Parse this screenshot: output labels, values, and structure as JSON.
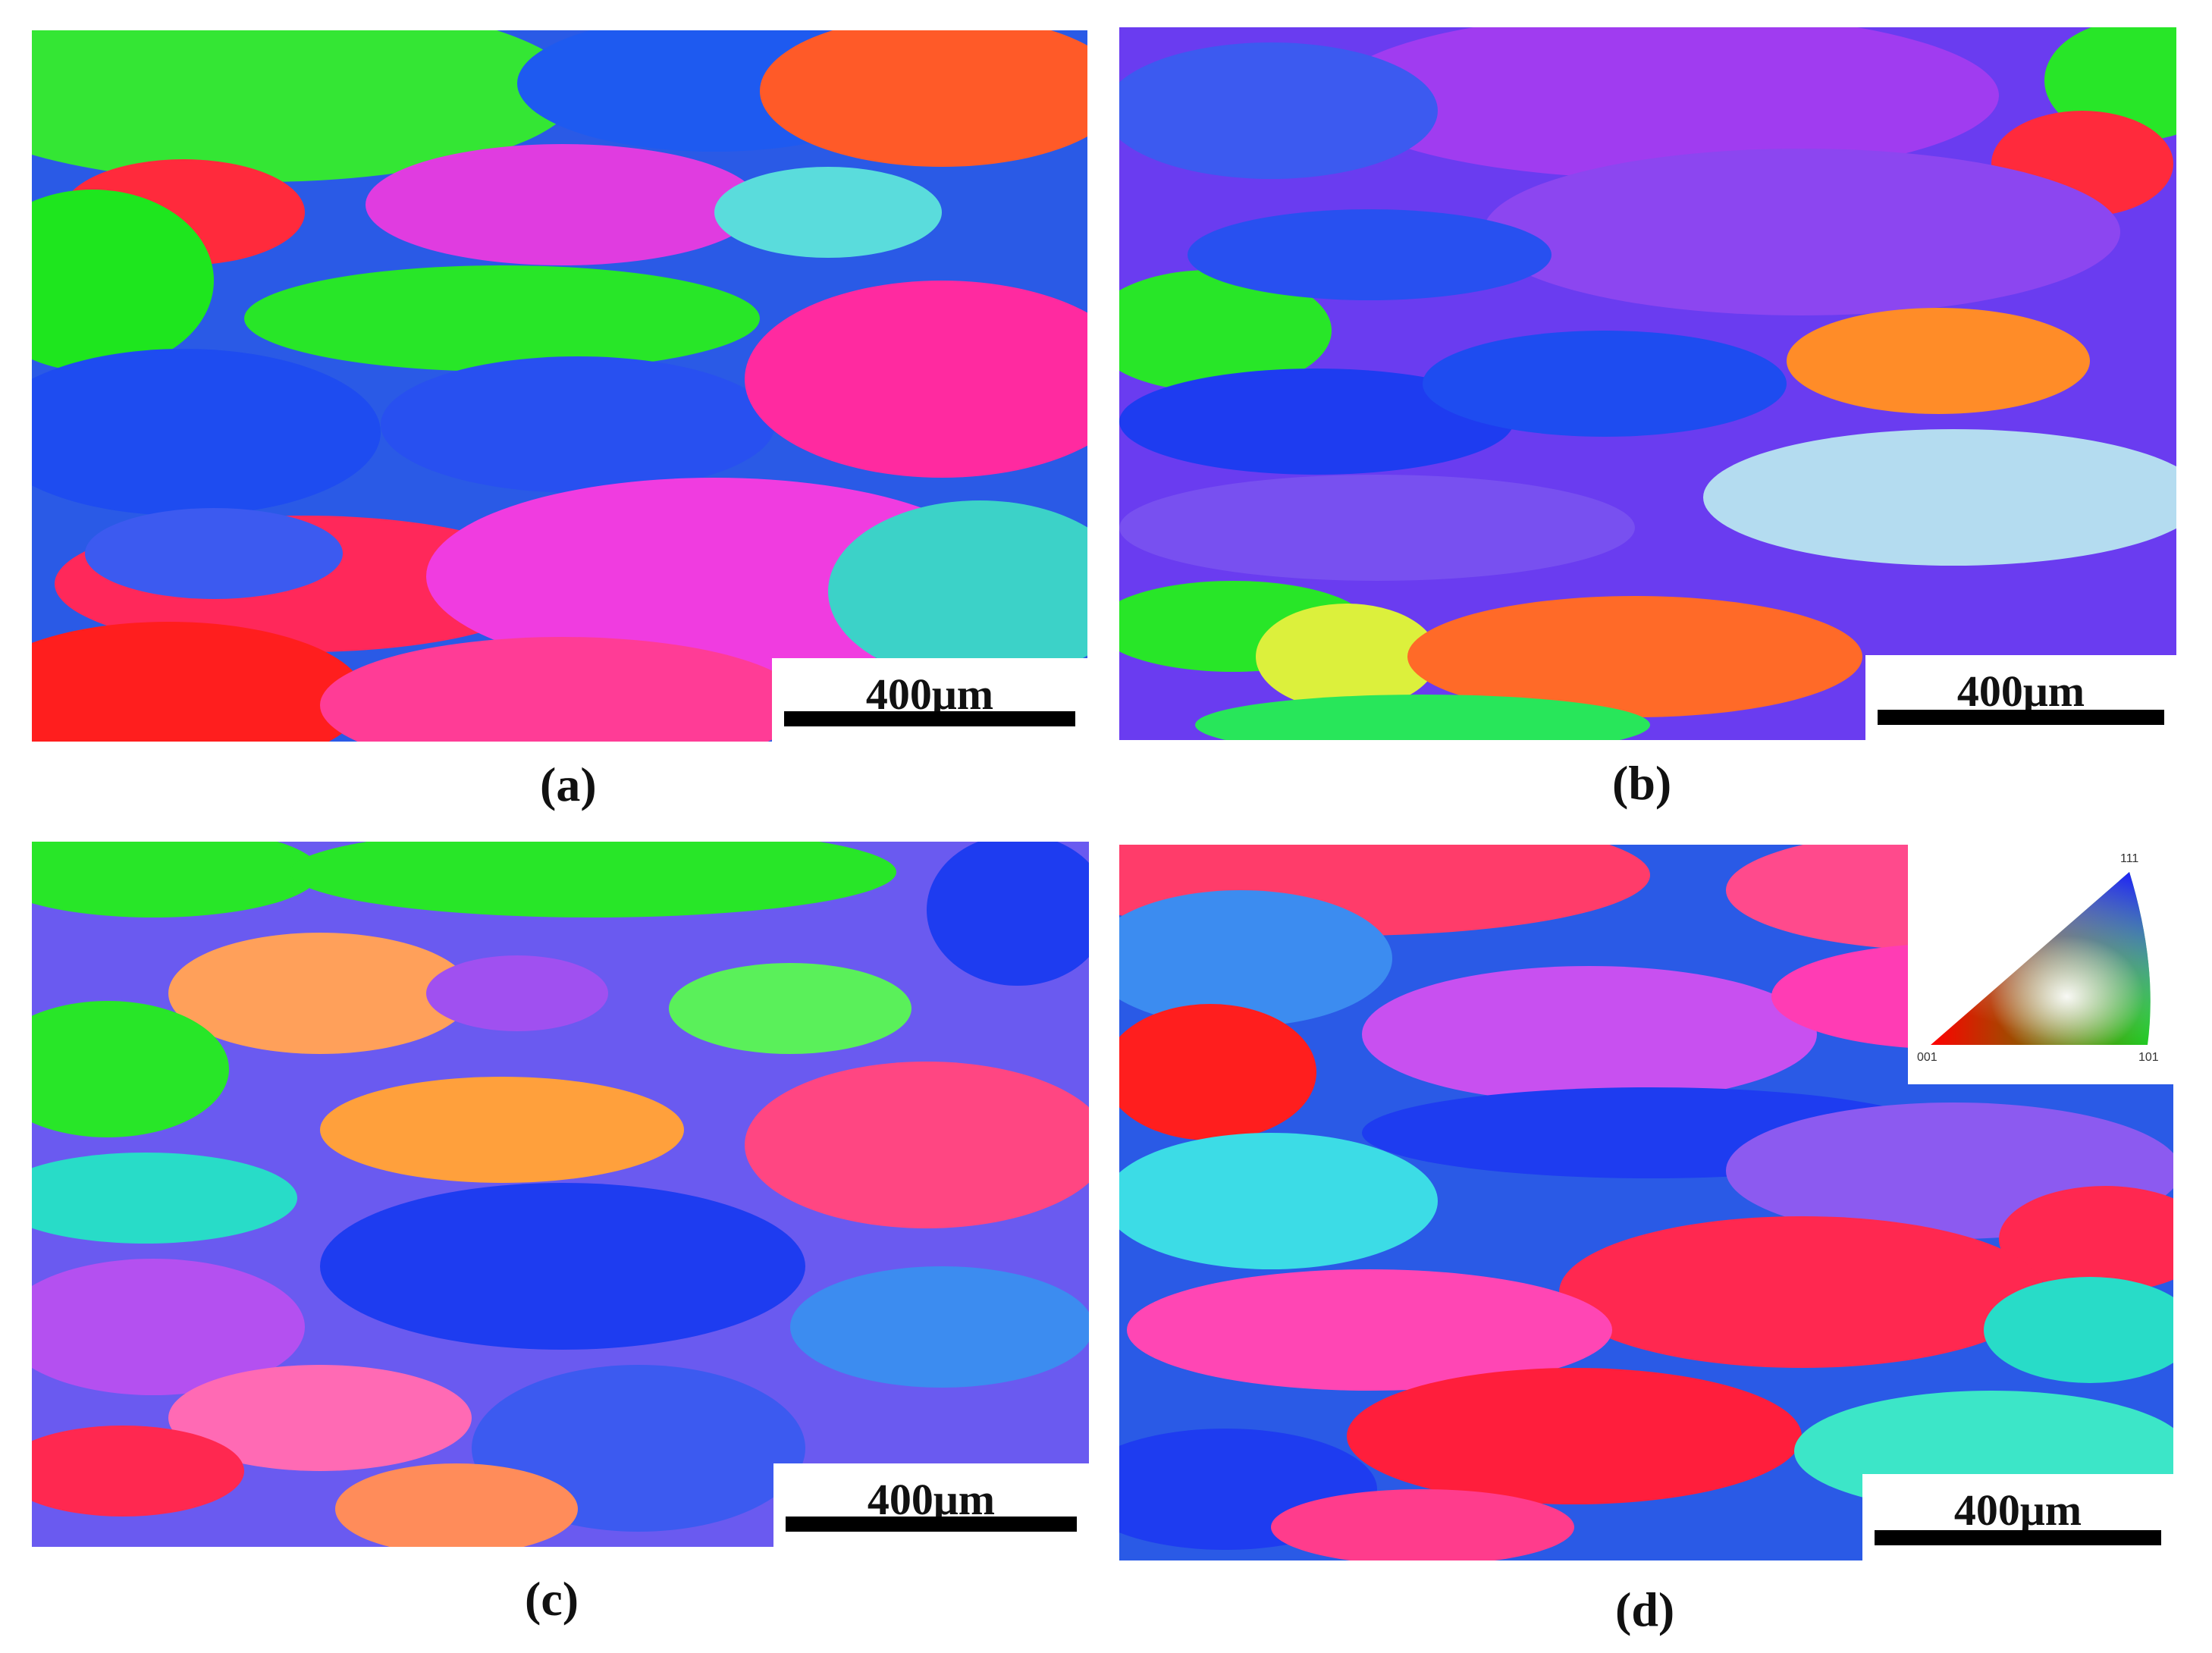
{
  "panels": [
    {
      "id": "a",
      "label": "(a)",
      "scale_text": "400μm"
    },
    {
      "id": "b",
      "label": "(b)",
      "scale_text": "400μm"
    },
    {
      "id": "c",
      "label": "(c)",
      "scale_text": "400μm"
    },
    {
      "id": "d",
      "label": "(d)",
      "scale_text": "400μm"
    }
  ],
  "legend": {
    "top": "111",
    "left": "001",
    "right": "101"
  },
  "colors": {
    "red": "#ff1e1e",
    "green": "#1ee61e",
    "blue": "#1e3cf0",
    "magenta": "#f03cc8",
    "violet": "#a03cf0",
    "cyan": "#28d2e6",
    "orange": "#ff8c28",
    "yellow": "#e6f03c",
    "pink": "#f064a0",
    "lightblue": "#3c8cf0"
  }
}
